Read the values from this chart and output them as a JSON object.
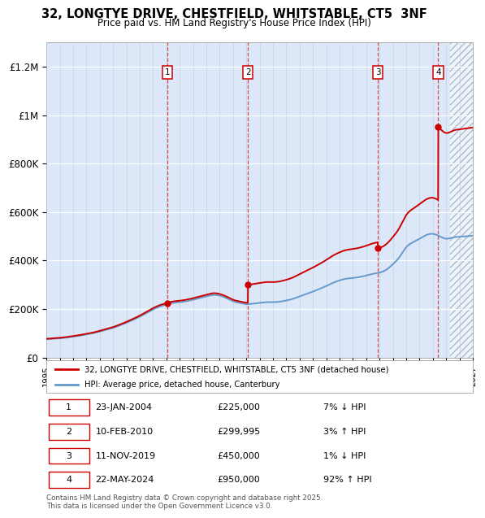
{
  "title": "32, LONGTYE DRIVE, CHESTFIELD, WHITSTABLE, CT5  3NF",
  "subtitle": "Price paid vs. HM Land Registry's House Price Index (HPI)",
  "ylim": [
    0,
    1300000
  ],
  "yticks": [
    0,
    200000,
    400000,
    600000,
    800000,
    1000000,
    1200000
  ],
  "ytick_labels": [
    "£0",
    "£200K",
    "£400K",
    "£600K",
    "£800K",
    "£1M",
    "£1.2M"
  ],
  "x_start_year": 1995,
  "x_end_year": 2027,
  "plot_bg_color": "#dce8f8",
  "grid_color": "#ffffff",
  "sale_color": "#cc0000",
  "hpi_color": "#6699cc",
  "current_year": 2025.3,
  "purchases": [
    {
      "date": 2004.07,
      "price": 225000,
      "label": "1"
    },
    {
      "date": 2010.12,
      "price": 299995,
      "label": "2"
    },
    {
      "date": 2019.87,
      "price": 450000,
      "label": "3"
    },
    {
      "date": 2024.4,
      "price": 950000,
      "label": "4"
    }
  ],
  "legend1_label": "32, LONGTYE DRIVE, CHESTFIELD, WHITSTABLE, CT5 3NF (detached house)",
  "legend2_label": "HPI: Average price, detached house, Canterbury",
  "footer": "Contains HM Land Registry data © Crown copyright and database right 2025.\nThis data is licensed under the Open Government Licence v3.0.",
  "table_rows": [
    [
      "1",
      "23-JAN-2004",
      "£225,000",
      "7% ↓ HPI"
    ],
    [
      "2",
      "10-FEB-2010",
      "£299,995",
      "3% ↑ HPI"
    ],
    [
      "3",
      "11-NOV-2019",
      "£450,000",
      "1% ↓ HPI"
    ],
    [
      "4",
      "22-MAY-2024",
      "£950,000",
      "92% ↑ HPI"
    ]
  ],
  "hpi_data_years": [
    1995,
    1995.5,
    1996,
    1996.5,
    1997,
    1997.5,
    1998,
    1998.5,
    1999,
    1999.5,
    2000,
    2000.5,
    2001,
    2001.5,
    2002,
    2002.5,
    2003,
    2003.5,
    2004,
    2004.5,
    2005,
    2005.5,
    2006,
    2006.5,
    2007,
    2007.5,
    2008,
    2008.5,
    2009,
    2009.5,
    2010,
    2010.5,
    2011,
    2011.5,
    2012,
    2012.5,
    2013,
    2013.5,
    2014,
    2014.5,
    2015,
    2015.5,
    2016,
    2016.5,
    2017,
    2017.5,
    2018,
    2018.5,
    2019,
    2019.5,
    2020,
    2020.5,
    2021,
    2021.5,
    2022,
    2022.5,
    2023,
    2023.5,
    2024,
    2024.5,
    2025,
    2025.5,
    2026,
    2026.5,
    2027
  ],
  "hpi_data_vals": [
    75000,
    77000,
    79000,
    82000,
    86000,
    90000,
    95000,
    100000,
    107000,
    114000,
    122000,
    132000,
    143000,
    155000,
    168000,
    183000,
    198000,
    210000,
    218000,
    225000,
    228000,
    232000,
    238000,
    245000,
    252000,
    258000,
    255000,
    245000,
    232000,
    225000,
    220000,
    222000,
    225000,
    228000,
    228000,
    230000,
    235000,
    242000,
    252000,
    262000,
    272000,
    283000,
    295000,
    308000,
    318000,
    325000,
    328000,
    332000,
    338000,
    345000,
    350000,
    362000,
    385000,
    415000,
    455000,
    475000,
    490000,
    505000,
    510000,
    500000,
    490000,
    495000,
    498000,
    500000,
    502000
  ]
}
